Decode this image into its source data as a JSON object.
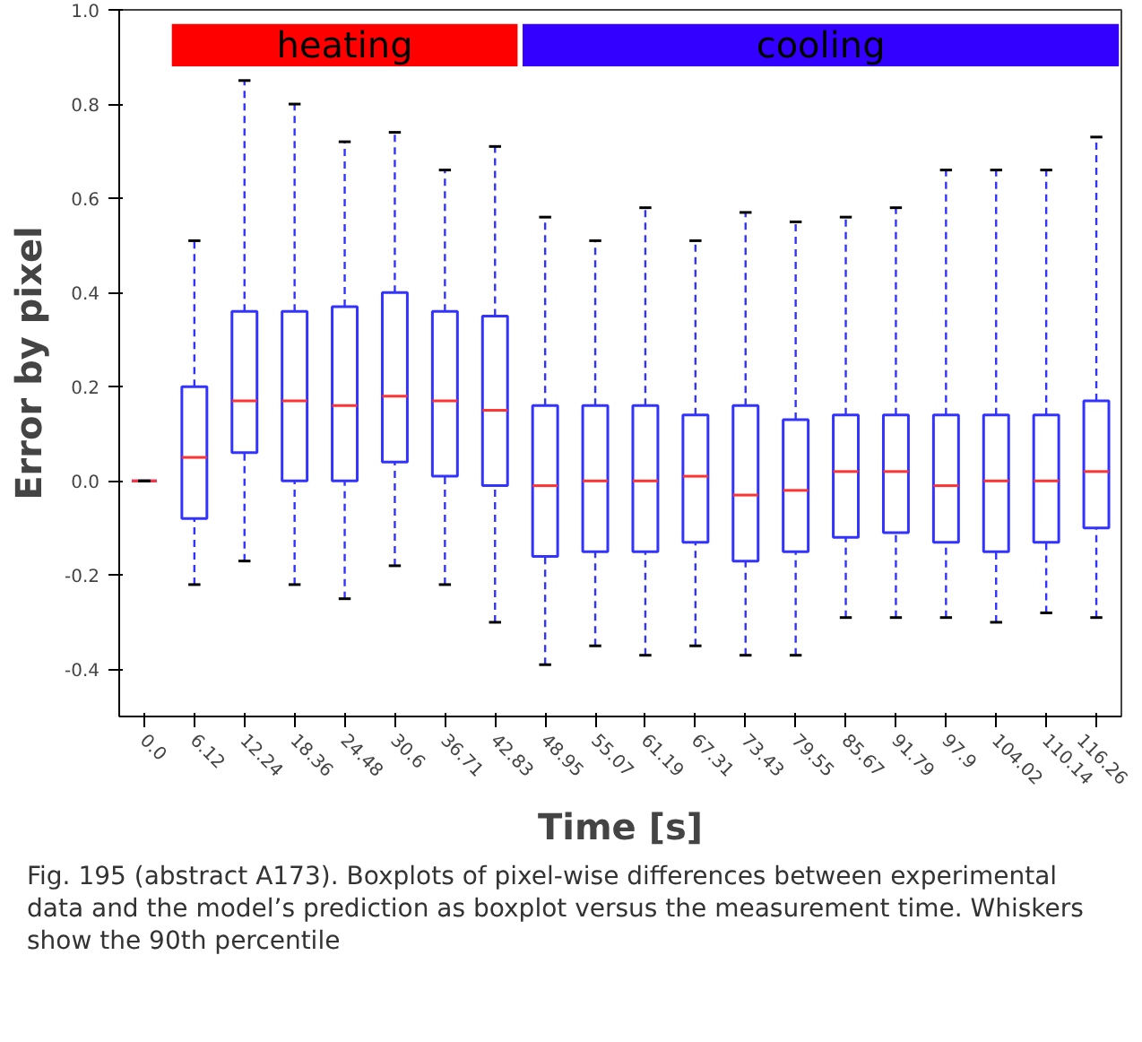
{
  "chart_data": {
    "type": "box",
    "xlabel": "Time [s]",
    "ylabel": "Error by pixel",
    "categories": [
      "0.0",
      "6.12",
      "12.24",
      "18.36",
      "24.48",
      "30.6",
      "36.71",
      "42.83",
      "48.95",
      "55.07",
      "61.19",
      "67.31",
      "73.43",
      "79.55",
      "85.67",
      "91.79",
      "97.9",
      "104.02",
      "110.14",
      "116.26"
    ],
    "color": "#3333ff",
    "boxes": [
      {
        "low": 0,
        "q1": 0,
        "median": 0,
        "q3": 0,
        "high": 0
      },
      {
        "low": -0.22,
        "q1": -0.08,
        "median": 0.05,
        "q3": 0.2,
        "high": 0.51
      },
      {
        "low": -0.17,
        "q1": 0.06,
        "median": 0.17,
        "q3": 0.36,
        "high": 0.85
      },
      {
        "low": -0.22,
        "q1": 0.0,
        "median": 0.17,
        "q3": 0.36,
        "high": 0.8
      },
      {
        "low": -0.25,
        "q1": 0.0,
        "median": 0.16,
        "q3": 0.37,
        "high": 0.72
      },
      {
        "low": -0.18,
        "q1": 0.04,
        "median": 0.18,
        "q3": 0.4,
        "high": 0.74
      },
      {
        "low": -0.22,
        "q1": 0.01,
        "median": 0.17,
        "q3": 0.36,
        "high": 0.66
      },
      {
        "low": -0.3,
        "q1": -0.01,
        "median": 0.15,
        "q3": 0.35,
        "high": 0.71
      },
      {
        "low": -0.39,
        "q1": -0.16,
        "median": -0.01,
        "q3": 0.16,
        "high": 0.56
      },
      {
        "low": -0.35,
        "q1": -0.15,
        "median": 0.0,
        "q3": 0.16,
        "high": 0.51
      },
      {
        "low": -0.37,
        "q1": -0.15,
        "median": 0.0,
        "q3": 0.16,
        "high": 0.58
      },
      {
        "low": -0.35,
        "q1": -0.13,
        "median": 0.01,
        "q3": 0.14,
        "high": 0.51
      },
      {
        "low": -0.37,
        "q1": -0.17,
        "median": -0.03,
        "q3": 0.16,
        "high": 0.57
      },
      {
        "low": -0.37,
        "q1": -0.15,
        "median": -0.02,
        "q3": 0.13,
        "high": 0.55
      },
      {
        "low": -0.29,
        "q1": -0.12,
        "median": 0.02,
        "q3": 0.14,
        "high": 0.56
      },
      {
        "low": -0.29,
        "q1": -0.11,
        "median": 0.02,
        "q3": 0.14,
        "high": 0.58
      },
      {
        "low": -0.29,
        "q1": -0.13,
        "median": -0.01,
        "q3": 0.14,
        "high": 0.66
      },
      {
        "low": -0.3,
        "q1": -0.15,
        "median": 0.0,
        "q3": 0.14,
        "high": 0.66
      },
      {
        "low": -0.28,
        "q1": -0.13,
        "median": 0.0,
        "q3": 0.14,
        "high": 0.66
      },
      {
        "low": -0.29,
        "q1": -0.1,
        "median": 0.02,
        "q3": 0.17,
        "high": 0.73
      }
    ],
    "ylim": [
      -0.5,
      1.0
    ],
    "yticks": [
      {
        "value": -0.4,
        "label": "-0.4"
      },
      {
        "value": -0.2,
        "label": "-0.2"
      },
      {
        "value": 0,
        "label": "0.0"
      },
      {
        "value": 0.2,
        "label": "0.2"
      },
      {
        "value": 0.4,
        "label": "0.4"
      },
      {
        "value": 0.6,
        "label": "0.6"
      },
      {
        "value": 0.8,
        "label": "0.8"
      },
      {
        "value": 1.0,
        "label": "1.0"
      }
    ],
    "bands": [
      {
        "axis": "x",
        "from": "6.12",
        "to": "42.83",
        "label": "heating",
        "color": "#ff0000"
      },
      {
        "axis": "x",
        "from": "48.95",
        "to": "116.26",
        "label": "cooling",
        "color": "#3300ff"
      }
    ],
    "grid": false,
    "annotations": [
      "Fig. 195 (abstract A173). Boxplots of pixel-wise differences between experimental data and the model’s prediction as boxplot versus the measurement time. Whiskers show the 90th percentile"
    ]
  }
}
